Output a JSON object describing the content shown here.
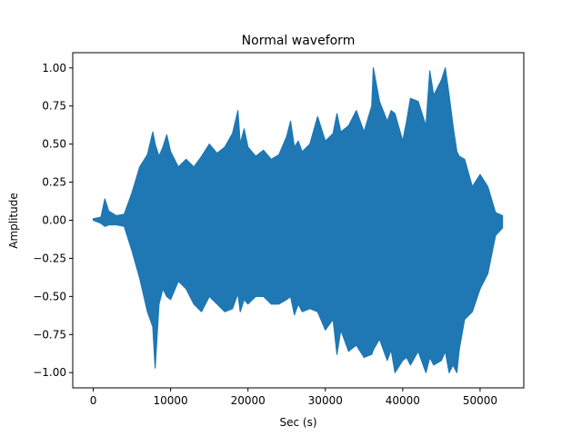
{
  "chart_data": {
    "type": "area",
    "title": "Normal waveform",
    "xlabel": "Sec (s)",
    "ylabel": "Amplitude",
    "xlim": [
      -2650,
      55650
    ],
    "ylim": [
      -1.1,
      1.1
    ],
    "xticks": [
      0,
      10000,
      20000,
      30000,
      40000,
      50000
    ],
    "xtick_labels": [
      "0",
      "10000",
      "20000",
      "30000",
      "40000",
      "50000"
    ],
    "yticks": [
      -1.0,
      -0.75,
      -0.5,
      -0.25,
      0.0,
      0.25,
      0.5,
      0.75,
      1.0
    ],
    "ytick_labels": [
      "−1.00",
      "−0.75",
      "−0.50",
      "−0.25",
      "0.00",
      "0.25",
      "0.50",
      "0.75",
      "1.00"
    ],
    "grid": false,
    "color": "#1f77b4",
    "series": [
      {
        "name": "",
        "x": [
          0,
          1000,
          1500,
          2000,
          3000,
          4000,
          5000,
          6000,
          7000,
          7700,
          8000,
          8500,
          9000,
          9500,
          10000,
          11000,
          12000,
          13000,
          14000,
          15000,
          16000,
          17000,
          18000,
          18700,
          19000,
          19500,
          20000,
          21000,
          22000,
          23000,
          24000,
          25000,
          25500,
          26000,
          26500,
          27000,
          28000,
          29000,
          30000,
          31000,
          31500,
          32000,
          33000,
          34000,
          35000,
          36000,
          36200,
          37000,
          38000,
          38500,
          39000,
          40000,
          40500,
          41000,
          42000,
          43000,
          43500,
          44000,
          45000,
          45500,
          46000,
          46500,
          47000,
          47300,
          48000,
          49000,
          50000,
          51000,
          52000,
          52900
        ],
        "upper": [
          0.01,
          0.02,
          0.14,
          0.06,
          0.03,
          0.04,
          0.18,
          0.35,
          0.43,
          0.58,
          0.5,
          0.42,
          0.48,
          0.56,
          0.45,
          0.35,
          0.4,
          0.35,
          0.42,
          0.5,
          0.44,
          0.48,
          0.57,
          0.72,
          0.5,
          0.6,
          0.48,
          0.42,
          0.46,
          0.4,
          0.43,
          0.55,
          0.65,
          0.48,
          0.52,
          0.45,
          0.5,
          0.68,
          0.52,
          0.57,
          0.7,
          0.58,
          0.62,
          0.72,
          0.58,
          0.75,
          1.0,
          0.78,
          0.65,
          0.72,
          0.7,
          0.52,
          0.65,
          0.8,
          0.78,
          0.62,
          0.98,
          0.82,
          0.92,
          1.0,
          0.82,
          0.62,
          0.45,
          0.42,
          0.4,
          0.22,
          0.3,
          0.22,
          0.05,
          0.03
        ],
        "lower": [
          0.0,
          -0.02,
          -0.04,
          -0.03,
          -0.03,
          -0.04,
          -0.2,
          -0.38,
          -0.6,
          -0.7,
          -0.97,
          -0.55,
          -0.45,
          -0.5,
          -0.52,
          -0.4,
          -0.45,
          -0.55,
          -0.6,
          -0.5,
          -0.55,
          -0.6,
          -0.58,
          -0.48,
          -0.6,
          -0.52,
          -0.55,
          -0.5,
          -0.5,
          -0.55,
          -0.55,
          -0.52,
          -0.5,
          -0.62,
          -0.55,
          -0.6,
          -0.58,
          -0.6,
          -0.72,
          -0.65,
          -0.88,
          -0.72,
          -0.86,
          -0.82,
          -0.9,
          -0.88,
          -0.85,
          -0.78,
          -0.92,
          -0.85,
          -1.0,
          -0.92,
          -0.9,
          -0.95,
          -0.86,
          -1.0,
          -0.9,
          -0.95,
          -0.92,
          -0.86,
          -1.0,
          -0.95,
          -1.0,
          -0.85,
          -0.65,
          -0.6,
          -0.45,
          -0.35,
          -0.1,
          -0.05
        ]
      }
    ]
  }
}
